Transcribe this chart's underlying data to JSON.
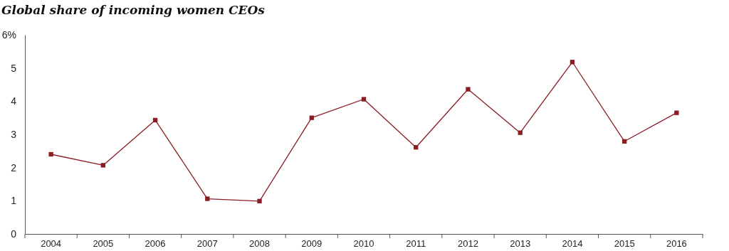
{
  "chart_data": {
    "type": "line",
    "title": "Global share of incoming women CEOs",
    "categories": [
      "2004",
      "2005",
      "2006",
      "2007",
      "2008",
      "2009",
      "2010",
      "2011",
      "2012",
      "2013",
      "2014",
      "2015",
      "2016"
    ],
    "series": [
      {
        "color": "#8b1c24",
        "values": [
          2.4,
          2.07,
          3.43,
          1.06,
          0.99,
          3.5,
          4.06,
          2.61,
          4.36,
          3.05,
          5.18,
          2.79,
          3.65
        ]
      }
    ],
    "ylim": [
      0,
      6
    ],
    "yticks": [
      0,
      1,
      2,
      3,
      4,
      5,
      {
        "value": 6,
        "label": "6%"
      }
    ],
    "marker": "square",
    "line_style": "solid"
  }
}
